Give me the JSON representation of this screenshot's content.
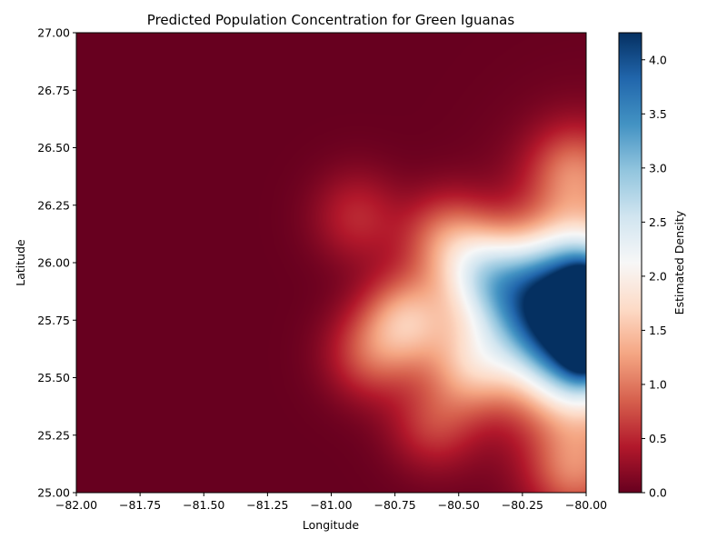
{
  "chart_data": {
    "type": "heatmap",
    "title": "Predicted Population Concentration for Green Iguanas",
    "xlabel": "Longitude",
    "ylabel": "Latitude",
    "colorbar_label": "Estimated Density",
    "colormap": "RdBu",
    "xlim": [
      -82.0,
      -80.0
    ],
    "ylim": [
      25.0,
      27.0
    ],
    "clim": [
      0.0,
      4.25
    ],
    "x_ticks": [
      -82.0,
      -81.75,
      -81.5,
      -81.25,
      -81.0,
      -80.75,
      -80.5,
      -80.25,
      -80.0
    ],
    "x_tick_labels": [
      "−82.00",
      "−81.75",
      "−81.50",
      "−81.25",
      "−81.00",
      "−80.75",
      "−80.50",
      "−80.25",
      "−80.00"
    ],
    "y_ticks": [
      25.0,
      25.25,
      25.5,
      25.75,
      26.0,
      26.25,
      26.5,
      26.75,
      27.0
    ],
    "y_tick_labels": [
      "25.00",
      "25.25",
      "25.50",
      "25.75",
      "26.00",
      "26.25",
      "26.50",
      "26.75",
      "27.00"
    ],
    "colorbar_ticks": [
      0.0,
      0.5,
      1.0,
      1.5,
      2.0,
      2.5,
      3.0,
      3.5,
      4.0
    ],
    "colorbar_tick_labels": [
      "0.0",
      "0.5",
      "1.0",
      "1.5",
      "2.0",
      "2.5",
      "3.0",
      "3.5",
      "4.0"
    ],
    "hotspots": [
      {
        "lon": -80.0,
        "lat": 25.75,
        "density": 4.2
      },
      {
        "lon": -80.03,
        "lat": 25.9,
        "density": 2.6
      },
      {
        "lon": -80.03,
        "lat": 25.6,
        "density": 2.5
      },
      {
        "lon": -80.25,
        "lat": 25.8,
        "density": 1.9
      },
      {
        "lon": -80.4,
        "lat": 25.95,
        "density": 1.4
      },
      {
        "lon": -80.7,
        "lat": 25.75,
        "density": 1.3
      },
      {
        "lon": -80.45,
        "lat": 25.55,
        "density": 1.1
      },
      {
        "lon": -80.55,
        "lat": 26.1,
        "density": 0.9
      },
      {
        "lon": -80.05,
        "lat": 26.4,
        "density": 0.8
      },
      {
        "lon": -80.05,
        "lat": 25.1,
        "density": 0.8
      },
      {
        "lon": -80.85,
        "lat": 25.6,
        "density": 0.7
      },
      {
        "lon": -80.9,
        "lat": 26.2,
        "density": 0.5
      },
      {
        "lon": -80.6,
        "lat": 25.3,
        "density": 0.6
      }
    ]
  }
}
